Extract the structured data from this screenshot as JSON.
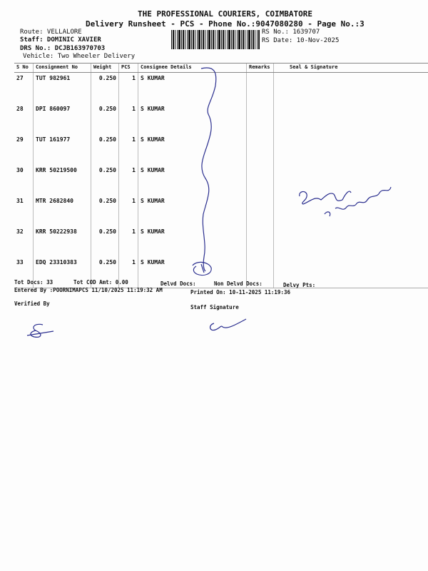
{
  "header": {
    "company": "THE PROFESSIONAL COURIERS, COIMBATORE",
    "subtitle": "Delivery Runsheet - PCS - Phone No.:9047080280 - Page No.:3",
    "route": "Route: VELLALORE",
    "staff": "Staff: DOMINIC XAVIER",
    "drs": "DRS No.: DCJB163970703",
    "vehicle": "Vehicle: Two Wheeler Delivery",
    "rs_no": "RS No.: 1639707",
    "rs_date": "RS Date: 10-Nov-2025"
  },
  "table": {
    "columns": [
      "S No",
      "Consignment No",
      "Weight",
      "PCS",
      "Consignee Details",
      "Remarks",
      "Seal & Signature"
    ],
    "rows": [
      {
        "sno": "27",
        "cno": "TUT 982961",
        "weight": "0.250",
        "pcs": "1",
        "consignee": "S KUMAR"
      },
      {
        "sno": "28",
        "cno": "DPI 860097",
        "weight": "0.250",
        "pcs": "1",
        "consignee": "S KUMAR"
      },
      {
        "sno": "29",
        "cno": "TUT 161977",
        "weight": "0.250",
        "pcs": "1",
        "consignee": "S KUMAR"
      },
      {
        "sno": "30",
        "cno": "KRR 50219500",
        "weight": "0.250",
        "pcs": "1",
        "consignee": "S KUMAR"
      },
      {
        "sno": "31",
        "cno": "MTR 2682840",
        "weight": "0.250",
        "pcs": "1",
        "consignee": "S KUMAR"
      },
      {
        "sno": "32",
        "cno": "KRR 50222938",
        "weight": "0.250",
        "pcs": "1",
        "consignee": "S KUMAR"
      },
      {
        "sno": "33",
        "cno": "EDQ 23310383",
        "weight": "0.250",
        "pcs": "1",
        "consignee": "S KUMAR"
      }
    ]
  },
  "footer": {
    "tot_docs": "Tot Docs:  33",
    "tot_cod": "Tot COD Amt:   0.00",
    "delvd": "Delvd Docs:",
    "non_delvd": "Non Delvd Docs:",
    "delvy_pts": "Delvy Pts:",
    "entered_by": "Entered By :POORNIMAPCS 11/10/2025 11:19:32 AM",
    "printed_on": "Printed On: 10-11-2025 11:19:36",
    "verified_by": "Verified By",
    "staff_signature": "Staff Signature"
  },
  "ink_color": "#2b2f8f"
}
